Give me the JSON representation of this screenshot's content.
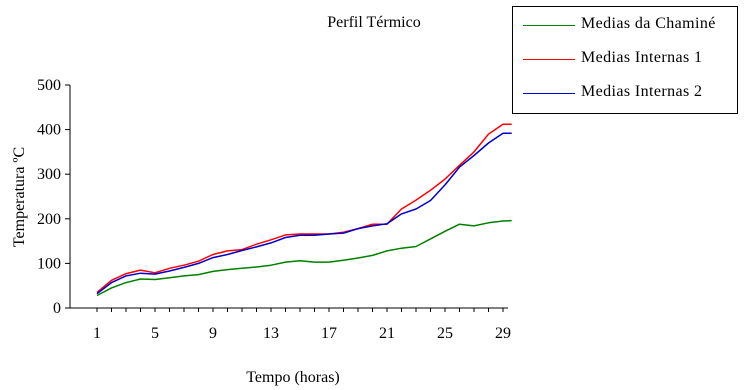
{
  "chart_data": {
    "type": "line",
    "title": "Perfil Térmico",
    "xlabel": "Tempo (horas)",
    "ylabel": "Temperatura ºC",
    "xlim": [
      1,
      29.5
    ],
    "ylim": [
      0,
      500
    ],
    "x_ticks": [
      1,
      5,
      9,
      13,
      17,
      21,
      25,
      29
    ],
    "y_ticks": [
      0,
      100,
      200,
      300,
      400,
      500
    ],
    "grid": false,
    "legend_position": "top-right",
    "x": [
      1,
      2,
      3,
      4,
      5,
      6,
      7,
      8,
      9,
      10,
      11,
      12,
      13,
      14,
      15,
      16,
      17,
      18,
      19,
      20,
      21,
      22,
      23,
      24,
      25,
      26,
      27,
      28,
      29,
      29.6
    ],
    "series": [
      {
        "name": "Medias da Chaminé",
        "color": "#008000",
        "values": [
          28,
          45,
          57,
          65,
          64,
          68,
          72,
          75,
          82,
          86,
          89,
          92,
          96,
          103,
          106,
          103,
          103,
          107,
          112,
          118,
          128,
          134,
          138,
          155,
          172,
          188,
          184,
          191,
          195,
          196
        ]
      },
      {
        "name": "Medias Internas 1",
        "color": "#ff0000",
        "values": [
          35,
          62,
          77,
          85,
          79,
          89,
          96,
          105,
          120,
          128,
          131,
          143,
          153,
          164,
          166,
          166,
          166,
          170,
          178,
          188,
          188,
          222,
          242,
          264,
          289,
          320,
          350,
          390,
          412,
          412
        ]
      },
      {
        "name": "Medias Internas 2",
        "color": "#0000cc",
        "values": [
          32,
          57,
          72,
          78,
          76,
          83,
          91,
          100,
          113,
          120,
          129,
          137,
          146,
          158,
          163,
          163,
          166,
          168,
          178,
          184,
          189,
          211,
          222,
          241,
          276,
          316,
          342,
          370,
          392,
          392
        ]
      }
    ]
  }
}
